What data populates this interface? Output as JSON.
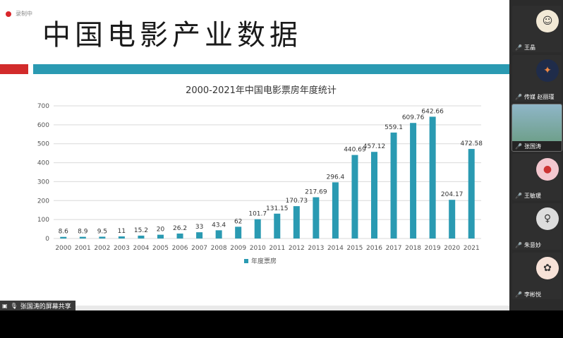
{
  "recording_label": "录制中",
  "slide_title": "中国电影产业数据",
  "share_label": "张国涛的屏幕共享",
  "participants": [
    {
      "name": "王晶",
      "avatar": "cartoon-avatar",
      "active": false
    },
    {
      "name": "传媒 赵丽瑾",
      "avatar": "dark-avatar",
      "active": false
    },
    {
      "name": "张国涛",
      "avatar": "camera-video",
      "active": true
    },
    {
      "name": "王敏瑗",
      "avatar": "pink-monster-avatar",
      "active": false
    },
    {
      "name": "朱意妙",
      "avatar": "portrait-avatar",
      "active": false
    },
    {
      "name": "李彬悦",
      "avatar": "drawing-avatar",
      "active": false
    }
  ],
  "colors": {
    "accent": "#2a9ab2",
    "red": "#d22b2b",
    "bar": "#2a9ab2"
  },
  "chart_data": {
    "type": "bar",
    "title": "2000-2021年中国电影票房年度统计",
    "categories": [
      "2000",
      "2001",
      "2002",
      "2003",
      "2004",
      "2005",
      "2006",
      "2007",
      "2008",
      "2009",
      "2010",
      "2011",
      "2012",
      "2013",
      "2014",
      "2015",
      "2016",
      "2017",
      "2018",
      "2019",
      "2020",
      "2021"
    ],
    "series": [
      {
        "name": "年度票房",
        "values": [
          8.6,
          8.9,
          9.5,
          11,
          15.2,
          20,
          26.2,
          33,
          43.4,
          62,
          101.7,
          131.15,
          170.73,
          217.69,
          296.4,
          440.69,
          457.12,
          559.1,
          609.76,
          642.66,
          204.17,
          472.58
        ]
      }
    ],
    "value_labels": [
      "8.6",
      "8.9",
      "9.5",
      "11",
      "15.2",
      "20",
      "26.2",
      "33",
      "43.4",
      "62",
      "101.7",
      "131.15",
      "170.73",
      "217.69",
      "296.4",
      "440.69",
      "457.12",
      "559.1",
      "609.76",
      "642.66",
      "204.17",
      "472.58"
    ],
    "yticks": [
      "0",
      "100",
      "200",
      "300",
      "400",
      "500",
      "600",
      "700"
    ],
    "ylim": [
      0,
      700
    ],
    "grid": true,
    "legend": "bottom"
  }
}
